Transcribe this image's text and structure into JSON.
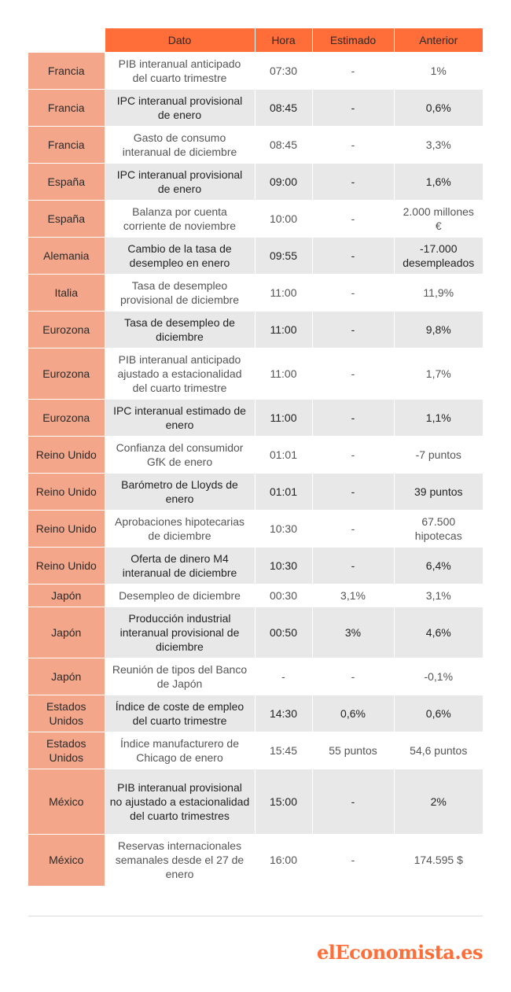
{
  "headers": [
    "",
    "Dato",
    "Hora",
    "Estimado",
    "Anterior"
  ],
  "rows": [
    {
      "pais": "Francia",
      "dato": "PIB interanual anticipado del cuarto trimestre",
      "hora": "07:30",
      "estimado": "-",
      "anterior": "1%"
    },
    {
      "pais": "Francia",
      "dato": "IPC interanual provisional de enero",
      "hora": "08:45",
      "estimado": "-",
      "anterior": "0,6%"
    },
    {
      "pais": "Francia",
      "dato": "Gasto de consumo interanual de diciembre",
      "hora": "08:45",
      "estimado": "-",
      "anterior": "3,3%"
    },
    {
      "pais": "España",
      "dato": "IPC interanual provisional de enero",
      "hora": "09:00",
      "estimado": "-",
      "anterior": "1,6%"
    },
    {
      "pais": "España",
      "dato": "Balanza por cuenta corriente de noviembre",
      "hora": "10:00",
      "estimado": "-",
      "anterior": "2.000 millones €"
    },
    {
      "pais": "Alemania",
      "dato": "Cambio de la tasa de desempleo en enero",
      "hora": "09:55",
      "estimado": "-",
      "anterior": "-17.000 desempleados"
    },
    {
      "pais": "Italia",
      "dato": "Tasa de desempleo provisional de diciembre",
      "hora": "11:00",
      "estimado": "-",
      "anterior": "11,9%"
    },
    {
      "pais": "Eurozona",
      "dato": "Tasa de desempleo de diciembre",
      "hora": "11:00",
      "estimado": "-",
      "anterior": "9,8%"
    },
    {
      "pais": "Eurozona",
      "dato": "PIB interanual anticipado ajustado a estacionalidad del cuarto trimestre",
      "hora": "11:00",
      "estimado": "-",
      "anterior": "1,7%"
    },
    {
      "pais": "Eurozona",
      "dato": "IPC interanual estimado de enero",
      "hora": "11:00",
      "estimado": "-",
      "anterior": "1,1%"
    },
    {
      "pais": "Reino Unido",
      "dato": "Confianza del consumidor GfK de enero",
      "hora": "01:01",
      "estimado": "-",
      "anterior": "-7 puntos"
    },
    {
      "pais": "Reino Unido",
      "dato": "Barómetro de Lloyds de enero",
      "hora": "01:01",
      "estimado": "-",
      "anterior": "39 puntos"
    },
    {
      "pais": "Reino Unido",
      "dato": "Aprobaciones hipotecarias de diciembre",
      "hora": "10:30",
      "estimado": "-",
      "anterior": "67.500 hipotecas"
    },
    {
      "pais": "Reino Unido",
      "dato": "Oferta de dinero M4 interanual de diciembre",
      "hora": "10:30",
      "estimado": "-",
      "anterior": "6,4%"
    },
    {
      "pais": "Japón",
      "dato": "Desempleo de diciembre",
      "hora": "00:30",
      "estimado": "3,1%",
      "anterior": "3,1%"
    },
    {
      "pais": "Japón",
      "dato": "Producción industrial interanual provisional de diciembre",
      "hora": "00:50",
      "estimado": "3%",
      "anterior": "4,6%"
    },
    {
      "pais": "Japón",
      "dato": "Reunión de tipos del Banco de Japón",
      "hora": "-",
      "estimado": "-",
      "anterior": "-0,1%"
    },
    {
      "pais": "Estados Unidos",
      "dato": "Índice de coste de empleo del cuarto trimestre",
      "hora": "14:30",
      "estimado": "0,6%",
      "anterior": "0,6%"
    },
    {
      "pais": "Estados Unidos",
      "dato": "Índice manufacturero de Chicago de enero",
      "hora": "15:45",
      "estimado": "55 puntos",
      "anterior": "54,6 puntos"
    },
    {
      "pais": "México",
      "dato": "PIB interanual provisional no ajustado a estacionalidad del cuarto trimestres",
      "hora": "15:00",
      "estimado": "-",
      "anterior": "2%"
    },
    {
      "pais": "México",
      "dato": "Reservas internacionales semanales desde el 27 de enero",
      "hora": "16:00",
      "estimado": "-",
      "anterior": "174.595 $"
    }
  ],
  "logo": {
    "prefix": "el",
    "name": "Economista",
    "suffix": ".es"
  },
  "colors": {
    "header": "#ff6d38",
    "country": "#f3a68a",
    "stripe": "#e8e8e8"
  }
}
